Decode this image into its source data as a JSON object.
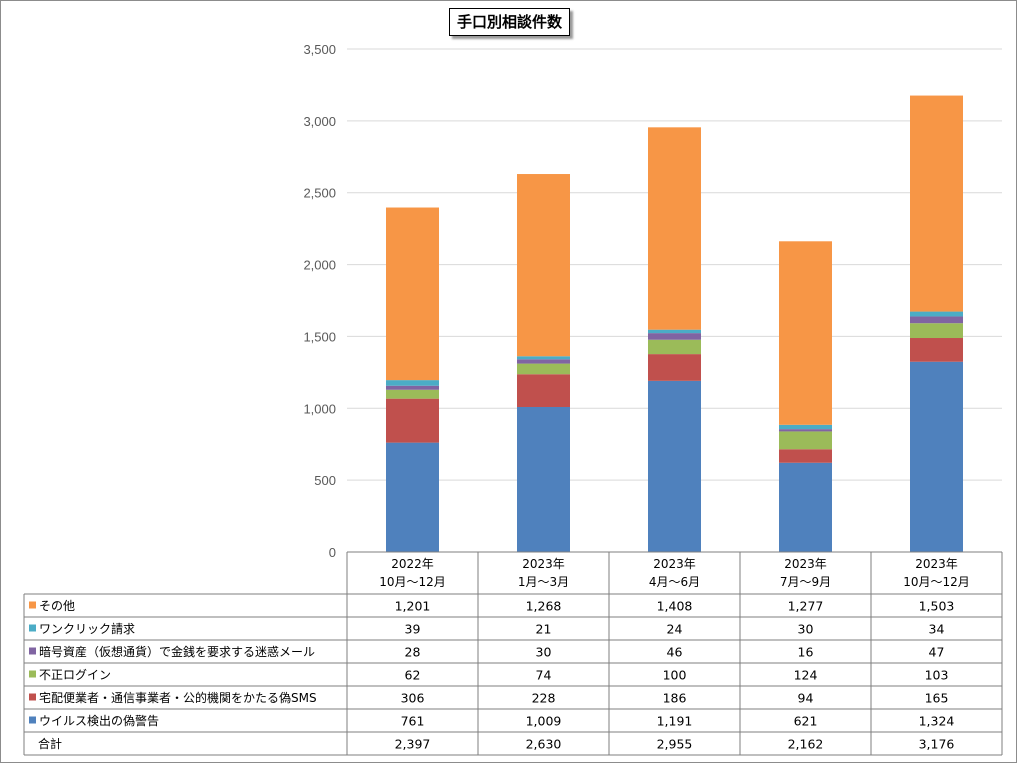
{
  "chart_data": {
    "type": "bar",
    "stacked": true,
    "title": "手口別相談件数",
    "categories": [
      [
        "2022年",
        "10月～12月"
      ],
      [
        "2023年",
        "1月～3月"
      ],
      [
        "2023年",
        "4月～6月"
      ],
      [
        "2023年",
        "7月～9月"
      ],
      [
        "2023年",
        "10月～12月"
      ]
    ],
    "ylim": [
      0,
      3500
    ],
    "yticks": [
      0,
      500,
      1000,
      1500,
      2000,
      2500,
      3000,
      3500
    ],
    "ytick_labels": [
      "0",
      "500",
      "1,000",
      "1,500",
      "2,000",
      "2,500",
      "3,000",
      "3,500"
    ],
    "grid": true,
    "legend_placement": "data-table",
    "series": [
      {
        "name": "ウイルス検出の偽警告",
        "color": "#4f81bd",
        "values": [
          761,
          1009,
          1191,
          621,
          1324
        ],
        "labels": [
          "761",
          "1,009",
          "1,191",
          "621",
          "1,324"
        ]
      },
      {
        "name": "宅配便業者・通信事業者・公的機関をかたる偽SMS",
        "color": "#c0504d",
        "values": [
          306,
          228,
          186,
          94,
          165
        ],
        "labels": [
          "306",
          "228",
          "186",
          "94",
          "165"
        ]
      },
      {
        "name": "不正ログイン",
        "color": "#9bbb59",
        "values": [
          62,
          74,
          100,
          124,
          103
        ],
        "labels": [
          "62",
          "74",
          "100",
          "124",
          "103"
        ]
      },
      {
        "name": "暗号資産（仮想通貨）で金銭を要求する迷惑メール",
        "color": "#8064a2",
        "values": [
          28,
          30,
          46,
          16,
          47
        ],
        "labels": [
          "28",
          "30",
          "46",
          "16",
          "47"
        ]
      },
      {
        "name": "ワンクリック請求",
        "color": "#4bacc6",
        "values": [
          39,
          21,
          24,
          30,
          34
        ],
        "labels": [
          "39",
          "21",
          "24",
          "30",
          "34"
        ]
      },
      {
        "name": "その他",
        "color": "#f79646",
        "values": [
          1201,
          1268,
          1408,
          1277,
          1503
        ],
        "labels": [
          "1,201",
          "1,268",
          "1,408",
          "1,277",
          "1,503"
        ]
      }
    ],
    "total": {
      "name": "合計",
      "values": [
        2397,
        2630,
        2955,
        2162,
        3176
      ],
      "labels": [
        "2,397",
        "2,630",
        "2,955",
        "2,162",
        "3,176"
      ]
    }
  }
}
